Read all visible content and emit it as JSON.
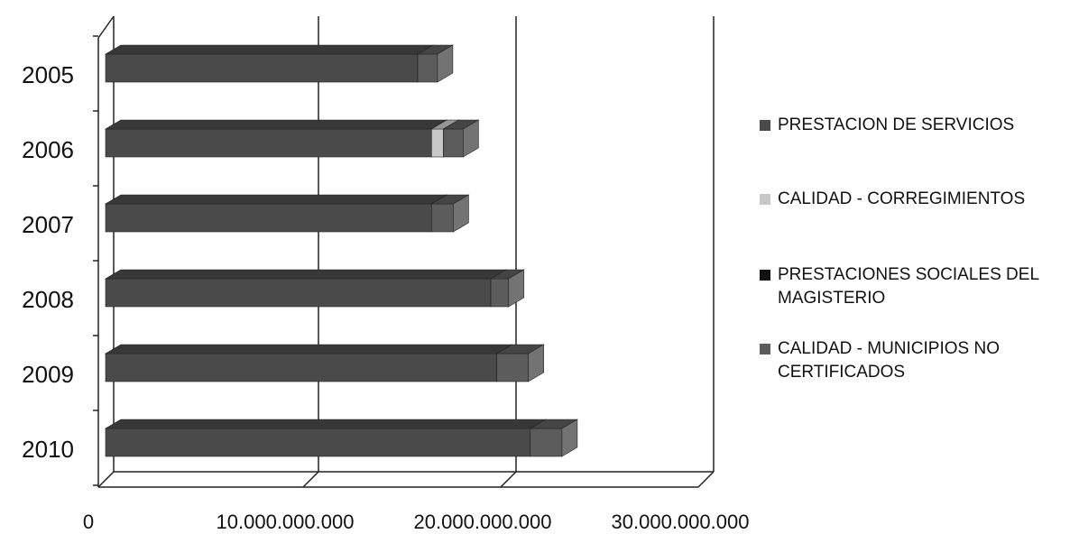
{
  "chart_data": {
    "type": "bar",
    "orientation": "horizontal",
    "stacked": true,
    "three_d": true,
    "categories": [
      "2005",
      "2006",
      "2007",
      "2008",
      "2009",
      "2010"
    ],
    "series": [
      {
        "name": "PRESTACION DE SERVICIOS",
        "color": "#4a4a4a",
        "values": [
          15800000000,
          16500000000,
          16500000000,
          19500000000,
          19800000000,
          21500000000
        ]
      },
      {
        "name": "CALIDAD - CORREGIMIENTOS",
        "color": "#c8c8c8",
        "values": [
          0,
          600000000,
          0,
          0,
          0,
          0
        ]
      },
      {
        "name": "PRESTACIONES SOCIALES DEL MAGISTERIO",
        "color": "#111111",
        "values": [
          0,
          0,
          0,
          0,
          0,
          0
        ]
      },
      {
        "name": "CALIDAD - MUNICIPIOS NO CERTIFICADOS",
        "color": "#5c5c5c",
        "values": [
          1000000000,
          1000000000,
          1100000000,
          900000000,
          1600000000,
          1600000000
        ]
      }
    ],
    "x_ticks": [
      "0",
      "10.000.000.000",
      "20.000.000.000",
      "30.000.000.000"
    ],
    "xlim": [
      0,
      30000000000
    ],
    "title": "",
    "xlabel": "",
    "ylabel": "",
    "grid": true,
    "legend_position": "right"
  }
}
